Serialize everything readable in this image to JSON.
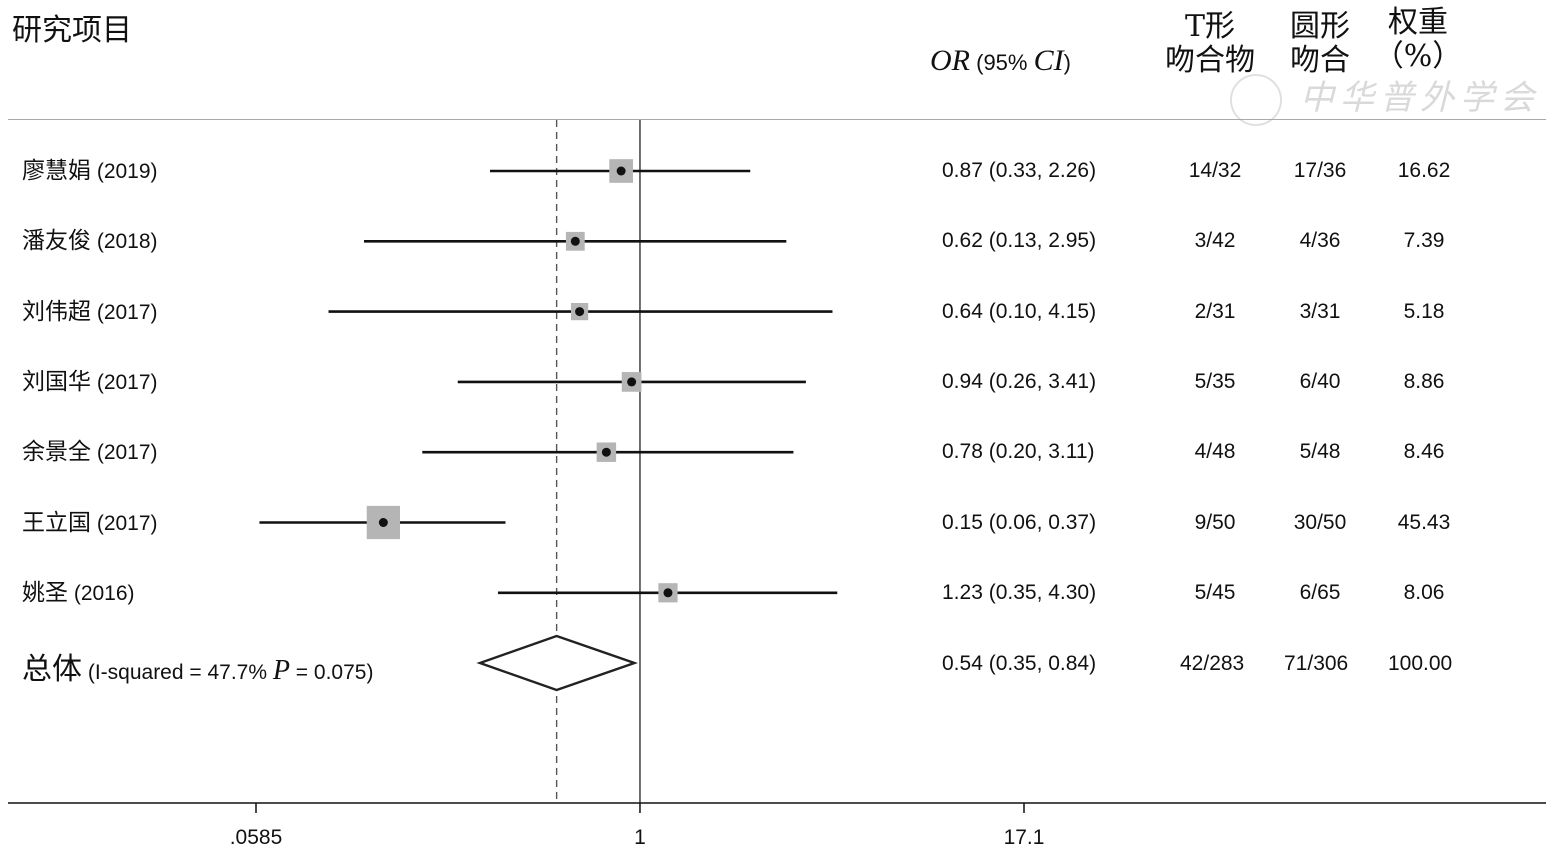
{
  "header": {
    "study_label": "研究项目",
    "or_main": "OR",
    "or_mid": " (95% ",
    "or_ci": "CI",
    "or_end": ")",
    "t_line1": "T形",
    "t_line2": "吻合物",
    "round_line1": "圆形",
    "round_line2": "吻合",
    "weight_line1": "权重",
    "weight_line2": "（%）"
  },
  "watermark": "中华普外学会",
  "overall": {
    "label": "总体",
    "isq_text": " (I-squared = 47.7% ",
    "p_label": "P",
    "p_text": " = 0.075)",
    "or_text": "0.54 (0.35, 0.84)",
    "t": "42/283",
    "round": "71/306",
    "weight": "100.00"
  },
  "chart_data": {
    "type": "forest",
    "xscale": "log",
    "null_line": 1,
    "pooled_line": 0.54,
    "xticks": [
      ".0585",
      "1",
      "17.1"
    ],
    "xtick_values": [
      0.0585,
      1,
      17.1
    ],
    "studies": [
      {
        "name": "廖慧娟",
        "year": "(2019)",
        "or": 0.87,
        "lo": 0.33,
        "hi": 2.26,
        "or_text": "0.87 (0.33, 2.26)",
        "t": "14/32",
        "round": "17/36",
        "weight": "16.62",
        "w": 16.62
      },
      {
        "name": "潘友俊",
        "year": "(2018)",
        "or": 0.62,
        "lo": 0.13,
        "hi": 2.95,
        "or_text": "0.62 (0.13, 2.95)",
        "t": "3/42",
        "round": "4/36",
        "weight": "7.39",
        "w": 7.39
      },
      {
        "name": "刘伟超",
        "year": "(2017)",
        "or": 0.64,
        "lo": 0.1,
        "hi": 4.15,
        "or_text": "0.64 (0.10, 4.15)",
        "t": "2/31",
        "round": "3/31",
        "weight": "5.18",
        "w": 5.18
      },
      {
        "name": "刘国华",
        "year": "(2017)",
        "or": 0.94,
        "lo": 0.26,
        "hi": 3.41,
        "or_text": "0.94 (0.26, 3.41)",
        "t": "5/35",
        "round": "6/40",
        "weight": "8.86",
        "w": 8.86
      },
      {
        "name": "余景全",
        "year": "(2017)",
        "or": 0.78,
        "lo": 0.2,
        "hi": 3.11,
        "or_text": "0.78 (0.20, 3.11)",
        "t": "4/48",
        "round": "5/48",
        "weight": "8.46",
        "w": 8.46
      },
      {
        "name": "王立国",
        "year": "(2017)",
        "or": 0.15,
        "lo": 0.06,
        "hi": 0.37,
        "or_text": "0.15 (0.06, 0.37)",
        "t": "9/50",
        "round": "30/50",
        "weight": "45.43",
        "w": 45.43
      },
      {
        "name": "姚圣",
        "year": "(2016)",
        "or": 1.23,
        "lo": 0.35,
        "hi": 4.3,
        "or_text": "1.23 (0.35, 4.30)",
        "t": "5/45",
        "round": "6/65",
        "weight": "8.06",
        "w": 8.06
      }
    ],
    "overall": {
      "or": 0.54,
      "lo": 0.35,
      "hi": 0.84
    }
  }
}
